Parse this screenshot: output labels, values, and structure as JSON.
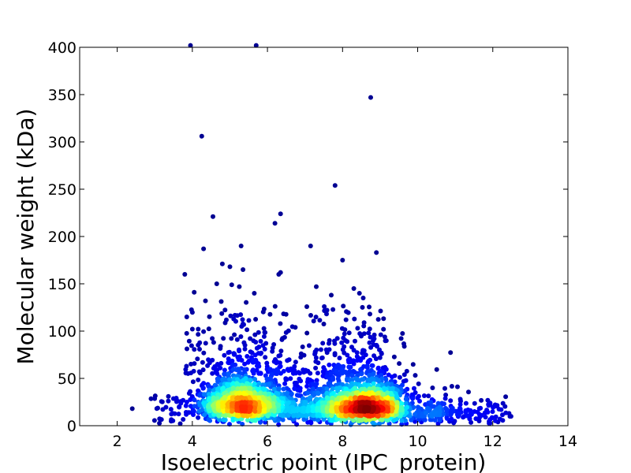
{
  "chart_data": {
    "type": "scatter",
    "title": "",
    "xlabel": "Isoelectric point (IPC_protein)",
    "ylabel": "Molecular weight (kDa)",
    "xlim": [
      1,
      14
    ],
    "ylim": [
      0,
      400
    ],
    "xticks": [
      2,
      4,
      6,
      8,
      10,
      12,
      14
    ],
    "yticks": [
      0,
      50,
      100,
      150,
      200,
      250,
      300,
      350,
      400
    ],
    "grid": false,
    "legend": "none",
    "colormap": "jet (point density)",
    "colors": {
      "low_density": "#00008f",
      "mid_density": "#00ffff",
      "high_density": "#800000"
    },
    "clusters": [
      {
        "center_x": 5.3,
        "center_y": 22,
        "spread_x": 0.55,
        "spread_y": 14,
        "count": 1300
      },
      {
        "center_x": 8.6,
        "center_y": 20,
        "spread_x": 0.55,
        "spread_y": 13,
        "count": 1600
      },
      {
        "center_x": 6.9,
        "center_y": 18,
        "spread_x": 0.9,
        "spread_y": 14,
        "count": 500
      },
      {
        "center_x": 10.2,
        "center_y": 12,
        "spread_x": 0.8,
        "spread_y": 8,
        "count": 180
      }
    ],
    "outliers": [
      [
        3.95,
        402
      ],
      [
        5.7,
        402
      ],
      [
        8.75,
        347
      ],
      [
        4.25,
        306
      ],
      [
        7.8,
        254
      ],
      [
        6.35,
        224
      ],
      [
        4.55,
        221
      ],
      [
        6.2,
        214
      ],
      [
        5.3,
        190
      ],
      [
        7.15,
        190
      ],
      [
        4.3,
        187
      ],
      [
        8.9,
        183
      ],
      [
        8.0,
        175
      ],
      [
        4.8,
        171
      ],
      [
        5.0,
        168
      ],
      [
        5.35,
        165
      ],
      [
        3.8,
        160
      ],
      [
        6.35,
        162
      ],
      [
        6.3,
        160
      ],
      [
        4.65,
        150
      ],
      [
        5.05,
        149
      ],
      [
        5.25,
        147
      ],
      [
        7.3,
        147
      ],
      [
        8.3,
        145
      ],
      [
        4.05,
        141
      ],
      [
        8.45,
        140
      ],
      [
        5.65,
        140
      ],
      [
        7.7,
        138
      ],
      [
        4.35,
        132
      ],
      [
        8.55,
        135
      ],
      [
        2.4,
        18
      ]
    ]
  }
}
